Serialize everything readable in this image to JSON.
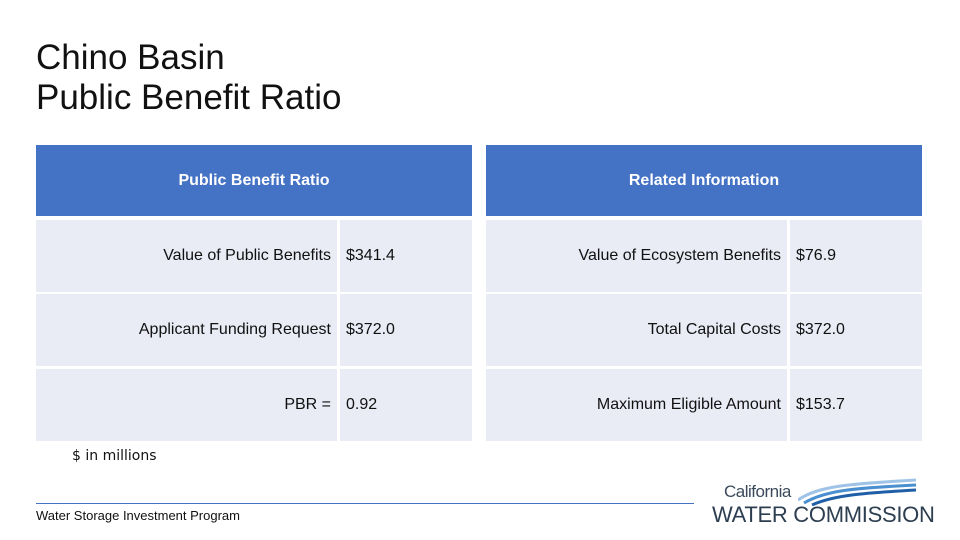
{
  "title": {
    "line1": "Chino Basin",
    "line2": "Public Benefit Ratio"
  },
  "left_table": {
    "header": "Public Benefit Ratio",
    "rows": [
      {
        "label": "Value of Public Benefits",
        "value": "$341.4"
      },
      {
        "label": "Applicant Funding Request",
        "value": "$372.0"
      },
      {
        "label": "PBR =",
        "value": "0.92"
      }
    ]
  },
  "right_table": {
    "header": "Related Information",
    "rows": [
      {
        "label": "Value of Ecosystem Benefits",
        "value": "$76.9"
      },
      {
        "label": "Total Capital Costs",
        "value": "$372.0"
      },
      {
        "label": "Maximum Eligible Amount",
        "value": "$153.7"
      }
    ]
  },
  "footnote": "$ in millions",
  "footer": "Water Storage Investment Program",
  "logo": {
    "top": "California",
    "bottom": "WATER COMMISSION"
  },
  "colors": {
    "header_bg": "#4472c4",
    "row_bg": "#e9ebf5",
    "rule": "#4472c4"
  }
}
